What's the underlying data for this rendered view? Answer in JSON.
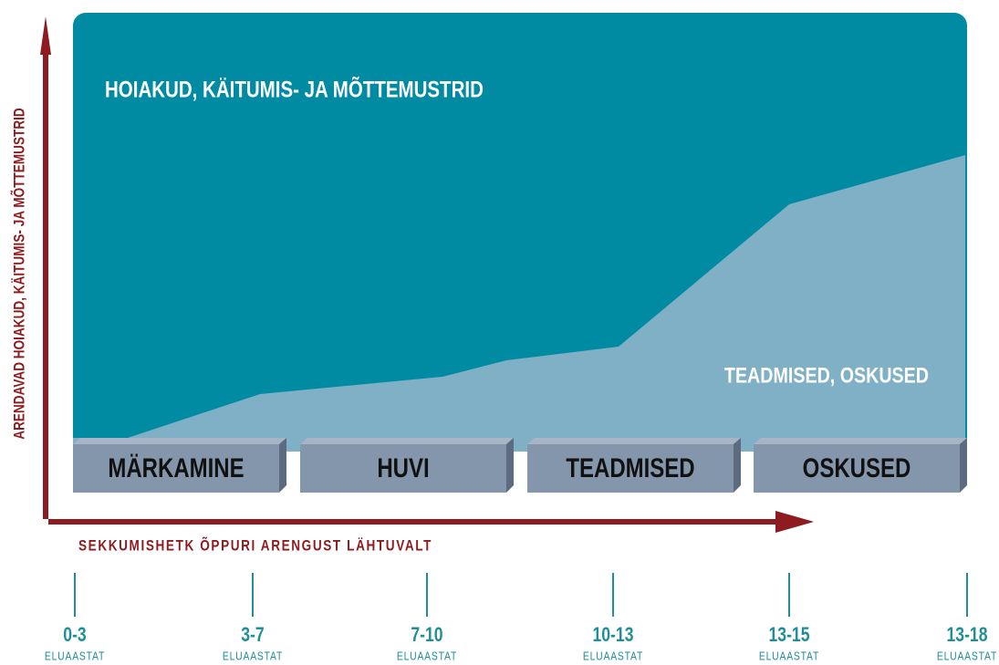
{
  "top_label": "HOIAKUD, KÄITUMIS- JA MÕTTEMUSTRID",
  "area_label": "TEADMISED, OSKUSED",
  "stages": [
    "MÄRKAMINE",
    "HUVI",
    "TEADMISED",
    "OSKUSED"
  ],
  "x_axis_label": "SEKKUMISHETK ÕPPURI ARENGUST LÄHTUVALT",
  "y_axis_label": "ARENDAVAD HOIAKUD, KÄITUMIS- JA MÕTTEMUSTRID",
  "ages": [
    {
      "range": "0-3",
      "unit": "ELUAASTAT"
    },
    {
      "range": "3-7",
      "unit": "ELUAASTAT"
    },
    {
      "range": "7-10",
      "unit": "ELUAASTAT"
    },
    {
      "range": "10-13",
      "unit": "ELUAASTAT"
    },
    {
      "range": "13-15",
      "unit": "ELUAASTAT"
    },
    {
      "range": "13-18",
      "unit": "ELUAASTAT"
    }
  ]
}
